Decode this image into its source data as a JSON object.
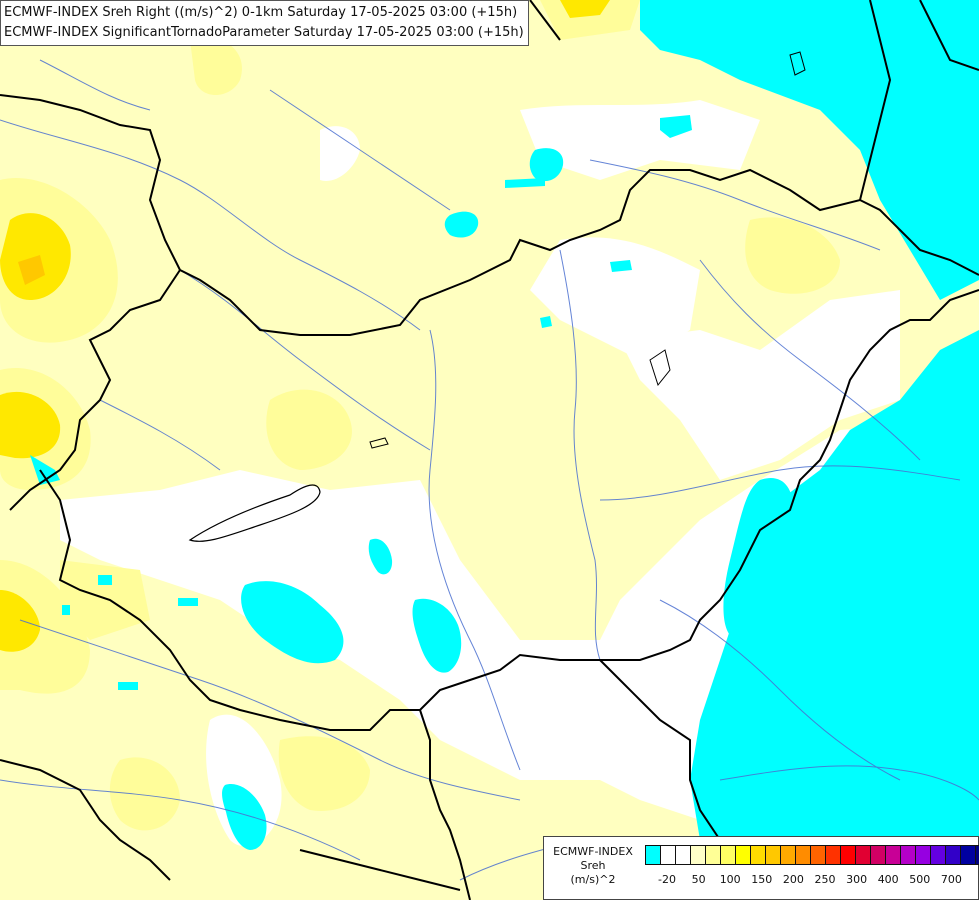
{
  "title": {
    "line1": "ECMWF-INDEX Sreh Right ((m/s)^2) 0-1km Saturday 17-05-2025 03:00 (+15h)",
    "line2": "ECMWF-INDEX SignificantTornadoParameter Saturday 17-05-2025 03:00 (+15h)"
  },
  "legend": {
    "line1": "ECMWF-INDEX",
    "line2": "Sreh",
    "line3": "(m/s)^2",
    "colors": [
      "#00ffff",
      "#ffffff",
      "#ffffff",
      "#ffffc8",
      "#ffff96",
      "#ffff64",
      "#ffff00",
      "#ffdc00",
      "#ffc800",
      "#ffaa00",
      "#ff8c00",
      "#ff6400",
      "#ff3200",
      "#ff0000",
      "#e10032",
      "#d20064",
      "#c80096",
      "#b400c8",
      "#9600e1",
      "#6400e1",
      "#3200c8",
      "#0000a0",
      "#000080"
    ],
    "ticks": [
      "-20",
      "50",
      "100",
      "150",
      "200",
      "250",
      "300",
      "400",
      "500",
      "700"
    ]
  },
  "colors": {
    "cyan": "#00ffff",
    "pale_yellow": "#ffffc0",
    "light_yellow": "#fffd9a",
    "yellow": "#ffe800",
    "border": "#000000",
    "river": "#4a6fd0"
  }
}
